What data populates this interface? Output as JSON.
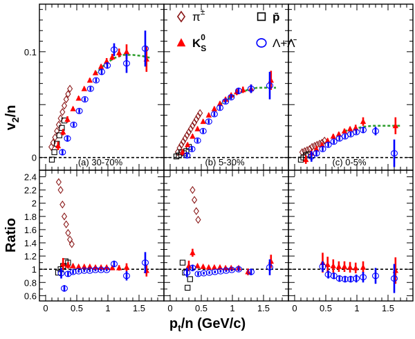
{
  "figure": {
    "y_title_top": "v",
    "y_title_top_sub": "2",
    "y_title_top_tail": "/n",
    "y_title_bottom": "Ratio",
    "x_title_main": "p",
    "x_title_sub": "t",
    "x_title_tail": "/n (GeV/c)"
  },
  "legend": [
    {
      "key": "pion",
      "label": "π",
      "sup": "±",
      "color": "#8b1a1a",
      "marker": "diamond-open"
    },
    {
      "key": "pbar",
      "label": "p̄",
      "sup": "",
      "color": "#000000",
      "marker": "square-open"
    },
    {
      "key": "k0s",
      "label": "K",
      "sup": "0",
      "sub": "S",
      "color": "#ff0000",
      "marker": "triangle-filled"
    },
    {
      "key": "lambda",
      "label": "Λ+Λ̄",
      "sup": "",
      "color": "#0000ff",
      "marker": "circle-open"
    }
  ],
  "fit_color": "#2e9e2e",
  "chart_data": [
    {
      "type": "scatter",
      "panel": "a",
      "label": "(a) 30-70%",
      "xlim": [
        -0.1,
        1.9
      ],
      "ylim": [
        -0.012,
        0.145
      ],
      "xticks": [
        "0",
        "0.5",
        "1",
        "1.5"
      ],
      "yticks": [
        {
          "v": 0,
          "label": "0"
        },
        {
          "v": 0.1,
          "label": "0.1"
        }
      ],
      "series": [
        {
          "key": "pion",
          "x": [
            0.09,
            0.12,
            0.15,
            0.18,
            0.21,
            0.24,
            0.27,
            0.3,
            0.33,
            0.36,
            0.39
          ],
          "y": [
            0.01,
            0.014,
            0.019,
            0.025,
            0.031,
            0.037,
            0.043,
            0.049,
            0.055,
            0.06,
            0.065
          ]
        },
        {
          "key": "pbar",
          "x": [
            0.1,
            0.14,
            0.18,
            0.22,
            0.26,
            0.3
          ],
          "y": [
            -0.002,
            0.005,
            0.013,
            0.021,
            0.028,
            0.035
          ]
        },
        {
          "key": "k0s",
          "x": [
            0.2,
            0.28,
            0.35,
            0.44,
            0.53,
            0.62,
            0.71,
            0.8,
            0.89,
            0.98,
            1.07,
            1.18,
            1.3,
            1.62
          ],
          "y": [
            0.011,
            0.024,
            0.036,
            0.046,
            0.056,
            0.065,
            0.073,
            0.08,
            0.086,
            0.091,
            0.095,
            0.099,
            0.1,
            0.093
          ],
          "yerr": [
            0.004,
            0.003,
            0.003,
            0.002,
            0.002,
            0.002,
            0.002,
            0.002,
            0.002,
            0.003,
            0.003,
            0.004,
            0.007,
            0.012
          ]
        },
        {
          "key": "lambda",
          "x": [
            0.27,
            0.35,
            0.45,
            0.54,
            0.63,
            0.72,
            0.81,
            0.9,
            0.99,
            1.1,
            1.3,
            1.6
          ],
          "y": [
            0.005,
            0.018,
            0.031,
            0.044,
            0.055,
            0.065,
            0.073,
            0.081,
            0.087,
            0.102,
            0.089,
            0.103
          ],
          "yerr": [
            0.003,
            0.003,
            0.002,
            0.002,
            0.002,
            0.002,
            0.002,
            0.003,
            0.003,
            0.006,
            0.009,
            0.017
          ]
        }
      ],
      "fit": {
        "x": [
          0.8,
          0.95,
          1.1,
          1.25,
          1.4,
          1.55,
          1.7
        ],
        "y": [
          0.079,
          0.088,
          0.094,
          0.097,
          0.097,
          0.096,
          0.094
        ]
      }
    },
    {
      "type": "scatter",
      "panel": "b",
      "label": "(b) 5-30%",
      "xlim": [
        -0.1,
        1.9
      ],
      "ylim": [
        -0.012,
        0.145
      ],
      "xticks": [
        "0",
        "0.5",
        "1",
        "1.5"
      ],
      "yticks": [],
      "series": [
        {
          "key": "pion",
          "x": [
            0.12,
            0.15,
            0.18,
            0.21,
            0.24,
            0.27,
            0.3,
            0.33,
            0.36,
            0.39,
            0.42,
            0.45,
            0.48
          ],
          "y": [
            0.005,
            0.009,
            0.012,
            0.015,
            0.018,
            0.021,
            0.024,
            0.027,
            0.03,
            0.033,
            0.036,
            0.039,
            0.042
          ]
        },
        {
          "key": "pbar",
          "x": [
            0.1,
            0.14,
            0.18,
            0.22,
            0.26,
            0.3
          ],
          "y": [
            0.001,
            0.002,
            0.005,
            0.004,
            0.006,
            0.01
          ]
        },
        {
          "key": "k0s",
          "x": [
            0.2,
            0.28,
            0.36,
            0.44,
            0.53,
            0.62,
            0.71,
            0.8,
            0.89,
            0.98,
            1.07,
            1.17,
            1.3,
            1.62
          ],
          "y": [
            0.005,
            0.012,
            0.02,
            0.027,
            0.034,
            0.04,
            0.046,
            0.051,
            0.055,
            0.059,
            0.062,
            0.064,
            0.065,
            0.073
          ],
          "yerr": [
            0.003,
            0.002,
            0.002,
            0.002,
            0.002,
            0.002,
            0.002,
            0.002,
            0.002,
            0.002,
            0.003,
            0.003,
            0.004,
            0.009
          ]
        },
        {
          "key": "lambda",
          "x": [
            0.27,
            0.35,
            0.44,
            0.53,
            0.62,
            0.71,
            0.8,
            0.89,
            0.98,
            1.1,
            1.3,
            1.6
          ],
          "y": [
            0.002,
            0.008,
            0.016,
            0.025,
            0.034,
            0.041,
            0.047,
            0.053,
            0.057,
            0.063,
            0.065,
            0.068
          ],
          "yerr": [
            0.002,
            0.002,
            0.002,
            0.002,
            0.002,
            0.002,
            0.002,
            0.002,
            0.002,
            0.003,
            0.004,
            0.013
          ]
        }
      ],
      "fit": {
        "x": [
          0.8,
          0.95,
          1.1,
          1.25,
          1.4,
          1.55,
          1.7
        ],
        "y": [
          0.05,
          0.056,
          0.061,
          0.064,
          0.066,
          0.066,
          0.066
        ]
      }
    },
    {
      "type": "scatter",
      "panel": "c",
      "label": "(c) 0-5%",
      "xlim": [
        -0.1,
        1.9
      ],
      "ylim": [
        -0.012,
        0.145
      ],
      "xticks": [
        "0",
        "0.5",
        "1",
        "1.5"
      ],
      "yticks": [],
      "series": [
        {
          "key": "pion",
          "x": [
            0.12,
            0.16,
            0.2,
            0.24,
            0.28,
            0.32,
            0.36,
            0.4,
            0.44,
            0.48
          ],
          "y": [
            0.005,
            0.006,
            0.007,
            0.008,
            0.01,
            0.011,
            0.012,
            0.013,
            0.014,
            0.016
          ]
        },
        {
          "key": "pbar",
          "x": [
            0.1,
            0.14,
            0.18,
            0.22
          ],
          "y": [
            -0.002,
            0.0,
            0.002,
            0.003
          ]
        },
        {
          "key": "k0s",
          "x": [
            0.18,
            0.27,
            0.35,
            0.44,
            0.53,
            0.62,
            0.71,
            0.8,
            0.89,
            0.98,
            1.1,
            1.62
          ],
          "y": [
            -0.002,
            0.004,
            0.008,
            0.012,
            0.016,
            0.02,
            0.022,
            0.025,
            0.027,
            0.028,
            0.034,
            0.03
          ],
          "yerr": [
            0.004,
            0.003,
            0.003,
            0.002,
            0.002,
            0.002,
            0.002,
            0.002,
            0.002,
            0.003,
            0.004,
            0.008
          ]
        },
        {
          "key": "lambda",
          "x": [
            0.27,
            0.35,
            0.45,
            0.54,
            0.63,
            0.72,
            0.81,
            0.9,
            0.99,
            1.1,
            1.3,
            1.6
          ],
          "y": [
            0.001,
            0.004,
            0.008,
            0.012,
            0.015,
            0.018,
            0.02,
            0.022,
            0.024,
            0.026,
            0.025,
            0.004
          ],
          "yerr": [
            0.005,
            0.003,
            0.002,
            0.002,
            0.002,
            0.002,
            0.002,
            0.002,
            0.002,
            0.003,
            0.004,
            0.013
          ]
        }
      ],
      "fit": {
        "x": [
          0.8,
          0.95,
          1.1,
          1.25,
          1.4,
          1.55,
          1.7
        ],
        "y": [
          0.025,
          0.027,
          0.029,
          0.03,
          0.03,
          0.03,
          0.03
        ]
      }
    },
    {
      "type": "scatter",
      "panel": "a-ratio",
      "xlim": [
        -0.1,
        1.9
      ],
      "ylim": [
        0.52,
        2.5
      ],
      "xticks": [
        "0",
        "0.5",
        "1",
        "1.5"
      ],
      "yticks": [
        {
          "v": 0.6,
          "label": "0.6"
        },
        {
          "v": 0.8,
          "label": "0.8"
        },
        {
          "v": 1.0,
          "label": "1"
        },
        {
          "v": 1.2,
          "label": "1.2"
        },
        {
          "v": 1.4,
          "label": "1.4"
        },
        {
          "v": 1.6,
          "label": "1.6"
        },
        {
          "v": 1.8,
          "label": "1.8"
        },
        {
          "v": 2.0,
          "label": "2"
        },
        {
          "v": 2.2,
          "label": "2.2"
        },
        {
          "v": 2.4,
          "label": "2.4"
        }
      ],
      "series": [
        {
          "key": "pion",
          "x": [
            0.21,
            0.24,
            0.27,
            0.3,
            0.33,
            0.36,
            0.39,
            0.42
          ],
          "y": [
            2.32,
            2.2,
            1.98,
            1.8,
            1.68,
            1.55,
            1.45,
            1.38
          ]
        },
        {
          "key": "pbar",
          "x": [
            0.2,
            0.24,
            0.28,
            0.32,
            0.36
          ],
          "y": [
            0.95,
            1.0,
            1.05,
            1.12,
            1.1
          ]
        },
        {
          "key": "k0s",
          "x": [
            0.28,
            0.36,
            0.44,
            0.53,
            0.62,
            0.71,
            0.8,
            0.89,
            0.98,
            1.07,
            1.18,
            1.3,
            1.62
          ],
          "y": [
            1.08,
            1.06,
            1.05,
            1.04,
            1.04,
            1.04,
            1.03,
            1.03,
            1.03,
            1.02,
            1.02,
            1.03,
            0.98
          ],
          "yerr": [
            0.09,
            0.05,
            0.03,
            0.02,
            0.02,
            0.02,
            0.02,
            0.02,
            0.02,
            0.03,
            0.04,
            0.06,
            0.09
          ]
        },
        {
          "key": "lambda",
          "x": [
            0.25,
            0.3,
            0.36,
            0.44,
            0.53,
            0.62,
            0.71,
            0.8,
            0.89,
            0.98,
            1.1,
            1.3,
            1.6
          ],
          "y": [
            0.94,
            0.71,
            0.93,
            0.96,
            0.97,
            0.98,
            0.98,
            0.99,
            0.99,
            0.99,
            1.08,
            0.9,
            1.1
          ],
          "yerr": [
            0.08,
            0.05,
            0.04,
            0.03,
            0.02,
            0.02,
            0.02,
            0.02,
            0.02,
            0.02,
            0.05,
            0.07,
            0.16
          ]
        }
      ],
      "ref_line": 1
    },
    {
      "type": "scatter",
      "panel": "b-ratio",
      "xlim": [
        -0.1,
        1.9
      ],
      "ylim": [
        0.52,
        2.5
      ],
      "xticks": [
        "0",
        "0.5",
        "1",
        "1.5"
      ],
      "yticks": [],
      "series": [
        {
          "key": "pion",
          "x": [
            0.36,
            0.39,
            0.42,
            0.45
          ],
          "y": [
            2.2,
            2.05,
            1.88,
            1.75
          ]
        },
        {
          "key": "pbar",
          "x": [
            0.2,
            0.24,
            0.28,
            0.32
          ],
          "y": [
            1.1,
            0.95,
            0.72,
            0.85
          ]
        },
        {
          "key": "k0s",
          "x": [
            0.3,
            0.36,
            0.44,
            0.53,
            0.62,
            0.71,
            0.8,
            0.89,
            0.98,
            1.1,
            1.25,
            1.62
          ],
          "y": [
            1.05,
            1.25,
            1.05,
            1.04,
            1.03,
            1.03,
            1.03,
            1.02,
            1.02,
            1.02,
            0.96,
            1.12
          ],
          "yerr": [
            0.08,
            0.06,
            0.03,
            0.02,
            0.02,
            0.02,
            0.02,
            0.02,
            0.02,
            0.03,
            0.05,
            0.1
          ]
        },
        {
          "key": "lambda",
          "x": [
            0.27,
            0.36,
            0.45,
            0.54,
            0.63,
            0.72,
            0.81,
            0.9,
            0.99,
            1.1,
            1.3,
            1.6
          ],
          "y": [
            0.95,
            1.02,
            0.93,
            0.94,
            0.95,
            0.96,
            0.97,
            0.98,
            0.99,
            1.0,
            0.96,
            1.03
          ],
          "yerr": [
            0.07,
            0.05,
            0.03,
            0.02,
            0.02,
            0.02,
            0.02,
            0.02,
            0.02,
            0.03,
            0.05,
            0.12
          ]
        }
      ],
      "ref_line": 1
    },
    {
      "type": "scatter",
      "panel": "c-ratio",
      "xlim": [
        -0.1,
        1.9
      ],
      "ylim": [
        0.52,
        2.5
      ],
      "xticks": [
        "0",
        "0.5",
        "1",
        "1.5"
      ],
      "yticks": [],
      "series": [
        {
          "key": "k0s",
          "x": [
            0.45,
            0.53,
            0.62,
            0.71,
            0.8,
            0.89,
            0.98,
            1.1,
            1.62
          ],
          "y": [
            1.1,
            1.07,
            1.05,
            1.04,
            1.04,
            1.03,
            1.02,
            1.03,
            0.98
          ],
          "yerr": [
            0.15,
            0.12,
            0.1,
            0.08,
            0.08,
            0.08,
            0.08,
            0.09,
            0.2
          ]
        },
        {
          "key": "lambda",
          "x": [
            0.45,
            0.54,
            0.63,
            0.72,
            0.81,
            0.9,
            0.99,
            1.1,
            1.3,
            1.6
          ],
          "y": [
            1.04,
            0.92,
            0.9,
            0.86,
            0.85,
            0.85,
            0.86,
            0.88,
            0.9,
            0.86
          ],
          "yerr": [
            0.08,
            0.06,
            0.05,
            0.05,
            0.05,
            0.05,
            0.06,
            0.08,
            0.12,
            0.22
          ]
        }
      ],
      "ref_line": 1
    }
  ]
}
